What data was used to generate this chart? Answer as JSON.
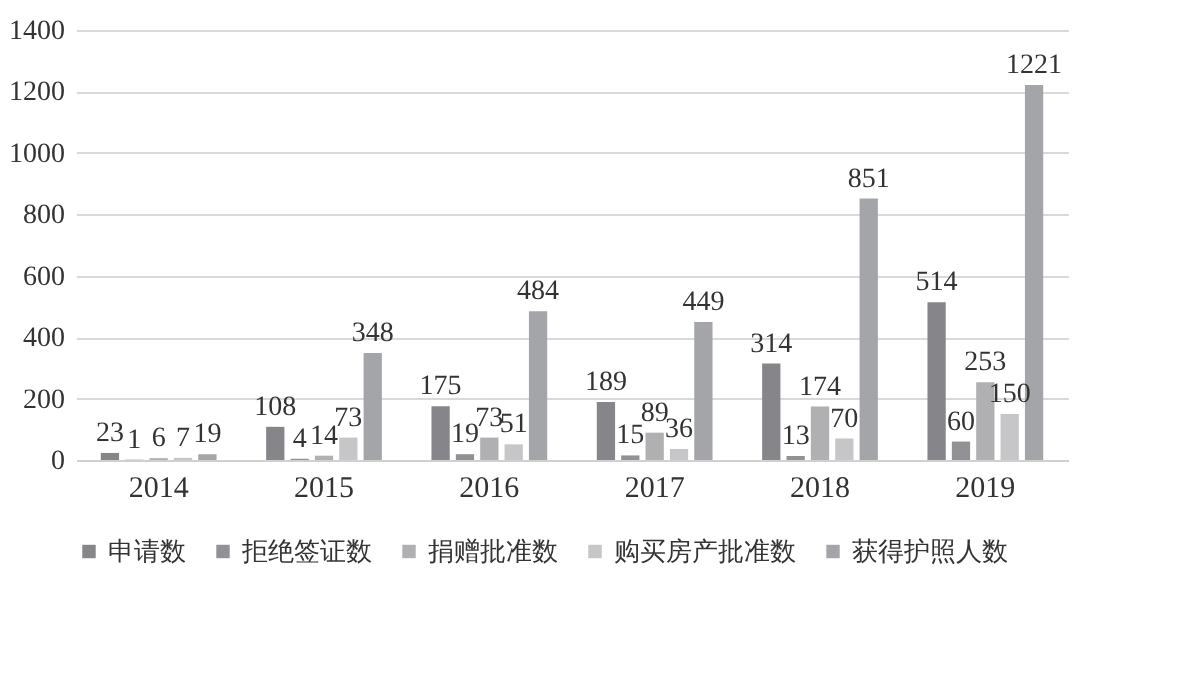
{
  "chart_data": {
    "type": "bar",
    "categories": [
      "2014",
      "2015",
      "2016",
      "2017",
      "2018",
      "2019"
    ],
    "series": [
      {
        "name": "申请数",
        "color": "#86868a",
        "values": [
          23,
          108,
          175,
          189,
          314,
          514
        ]
      },
      {
        "name": "拒绝签证数",
        "color": "#929296",
        "values": [
          1,
          4,
          19,
          15,
          13,
          60
        ]
      },
      {
        "name": "捐赠批准数",
        "color": "#b0b0b2",
        "values": [
          6,
          14,
          73,
          89,
          174,
          253
        ]
      },
      {
        "name": "购买房产批准数",
        "color": "#c6c6c8",
        "values": [
          7,
          73,
          51,
          36,
          70,
          150
        ]
      },
      {
        "name": "获得护照人数",
        "color": "#a4a5a8",
        "values": [
          19,
          348,
          484,
          449,
          851,
          1221
        ]
      }
    ],
    "ylim": [
      0,
      1400
    ],
    "yticks": [
      0,
      200,
      400,
      600,
      800,
      1000,
      1200,
      1400
    ],
    "grid": "y",
    "legend": "bottom",
    "data_labels": true
  }
}
